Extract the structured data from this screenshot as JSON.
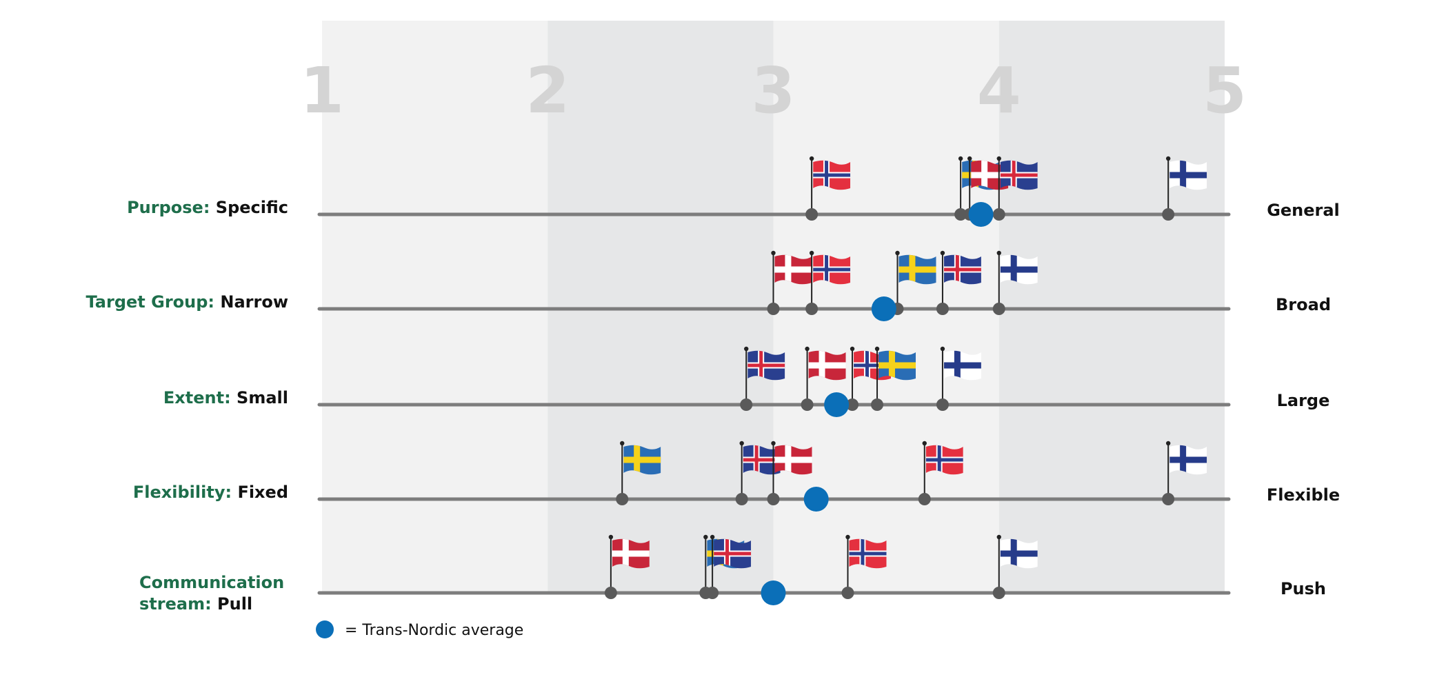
{
  "chart_data": {
    "type": "scatter",
    "xlim": [
      1,
      5
    ],
    "x_ticks": [
      "1",
      "2",
      "3",
      "4",
      "5"
    ],
    "rows": [
      {
        "category": "Purpose:",
        "left_label": "Specific",
        "right_label": "General",
        "points": [
          {
            "country": "norway",
            "x": 3.17
          },
          {
            "country": "sweden",
            "x": 3.83
          },
          {
            "country": "denmark",
            "x": 3.87
          },
          {
            "country": "iceland",
            "x": 4.0
          },
          {
            "country": "finland",
            "x": 4.75
          }
        ],
        "average": 3.92
      },
      {
        "category": "Target Group:",
        "left_label": "Narrow",
        "right_label": "Broad",
        "points": [
          {
            "country": "denmark",
            "x": 3.0
          },
          {
            "country": "norway",
            "x": 3.17
          },
          {
            "country": "sweden",
            "x": 3.55
          },
          {
            "country": "iceland",
            "x": 3.75
          },
          {
            "country": "finland",
            "x": 4.0
          }
        ],
        "average": 3.49
      },
      {
        "category": "Extent:",
        "left_label": "Small",
        "right_label": "Large",
        "points": [
          {
            "country": "iceland",
            "x": 2.88
          },
          {
            "country": "denmark",
            "x": 3.15
          },
          {
            "country": "norway",
            "x": 3.35
          },
          {
            "country": "sweden",
            "x": 3.46
          },
          {
            "country": "finland",
            "x": 3.75
          }
        ],
        "average": 3.28
      },
      {
        "category": "Flexibility:",
        "left_label": "Fixed",
        "right_label": "Flexible",
        "points": [
          {
            "country": "sweden",
            "x": 2.33
          },
          {
            "country": "iceland",
            "x": 2.86
          },
          {
            "country": "denmark",
            "x": 3.0
          },
          {
            "country": "norway",
            "x": 3.67
          },
          {
            "country": "finland",
            "x": 4.75
          }
        ],
        "average": 3.19
      },
      {
        "category": "Communication stream:",
        "category_lines": [
          "Communication",
          "stream:"
        ],
        "left_label": "Pull",
        "right_label": "Push",
        "points": [
          {
            "country": "denmark",
            "x": 2.28
          },
          {
            "country": "sweden",
            "x": 2.7
          },
          {
            "country": "iceland",
            "x": 2.73
          },
          {
            "country": "norway",
            "x": 3.33
          },
          {
            "country": "finland",
            "x": 4.0
          }
        ],
        "average": 3.0
      }
    ],
    "legend": {
      "label": "= Trans-Nordic average",
      "placement": "bottom-left"
    },
    "colors": {
      "average_marker": "#0b6fb8",
      "point_marker": "#5a5a5a",
      "axis_line": "#7d7d7d",
      "band_light": "#f2f2f2",
      "band_dark": "#e6e7e8",
      "category_text": "#1e6e4b"
    },
    "flags": {
      "norway": {
        "field": "#e4303f",
        "cross_outer": "#ffffff",
        "cross_inner": "#2a3f8f"
      },
      "denmark": {
        "field": "#c8263a",
        "cross_outer": "#ffffff"
      },
      "iceland": {
        "field": "#2a3f8f",
        "cross_outer": "#ffffff",
        "cross_inner": "#d7283c"
      },
      "sweden": {
        "field": "#2a6db5",
        "cross_outer": "#f6d21a"
      },
      "finland": {
        "field": "#ffffff",
        "cross_outer": "#263b8a"
      }
    }
  }
}
